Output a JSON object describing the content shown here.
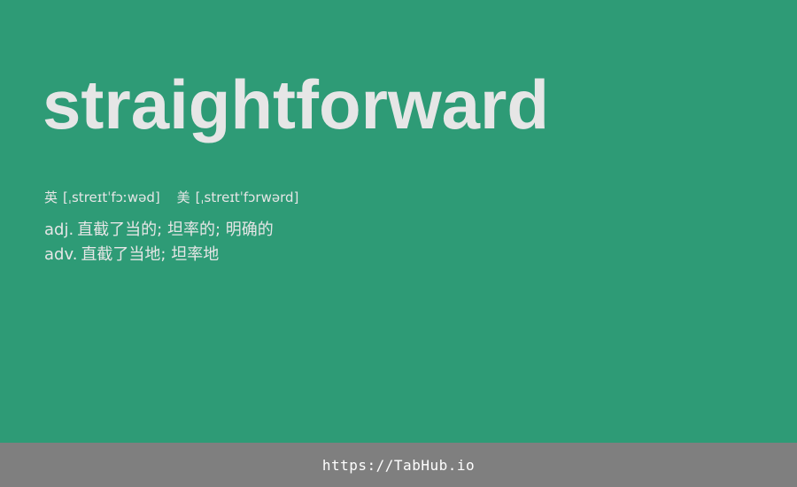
{
  "word": "straightforward",
  "phonetics": [
    {
      "label": "英",
      "ipa": "[ˌstreɪtˈfɔːwəd]"
    },
    {
      "label": "美",
      "ipa": "[ˌstreɪtˈfɔrwərd]"
    }
  ],
  "definitions": [
    {
      "pos": "adj.",
      "meaning": "直截了当的; 坦率的; 明确的"
    },
    {
      "pos": "adv.",
      "meaning": "直截了当地; 坦率地"
    }
  ],
  "footer": {
    "link_text": "https://TabHub.io"
  },
  "colors": {
    "background": "#2e9b76",
    "footer": "#7f7f7f",
    "text": "#e6e6e6"
  }
}
